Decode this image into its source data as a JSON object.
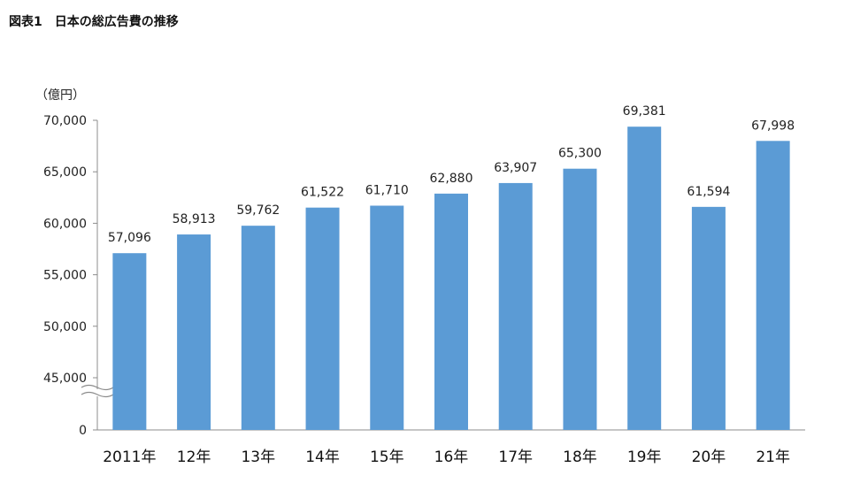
{
  "figure": {
    "title_number": "図表1",
    "title_text": "日本の総広告費の推移"
  },
  "chart_data": {
    "type": "bar",
    "title": "日本の総広告費の推移",
    "unit_label": "（億円）",
    "categories": [
      "2011年",
      "12年",
      "13年",
      "14年",
      "15年",
      "16年",
      "17年",
      "18年",
      "19年",
      "20年",
      "21年"
    ],
    "values": [
      57096,
      58913,
      59762,
      61522,
      61710,
      62880,
      63907,
      65300,
      69381,
      61594,
      67998
    ],
    "data_labels": [
      "57,096",
      "58,913",
      "59,762",
      "61,522",
      "61,710",
      "62,880",
      "63,907",
      "65,300",
      "69,381",
      "61,594",
      "67,998"
    ],
    "y_ticks": [
      "70,000",
      "65,000",
      "60,000",
      "55,000",
      "50,000",
      "45,000",
      "0"
    ],
    "y_tick_values": [
      70000,
      65000,
      60000,
      55000,
      50000,
      45000,
      0
    ],
    "ylim": [
      45000,
      70000
    ],
    "axis_break": true,
    "grid": false,
    "bar_color": "#5b9bd5"
  }
}
